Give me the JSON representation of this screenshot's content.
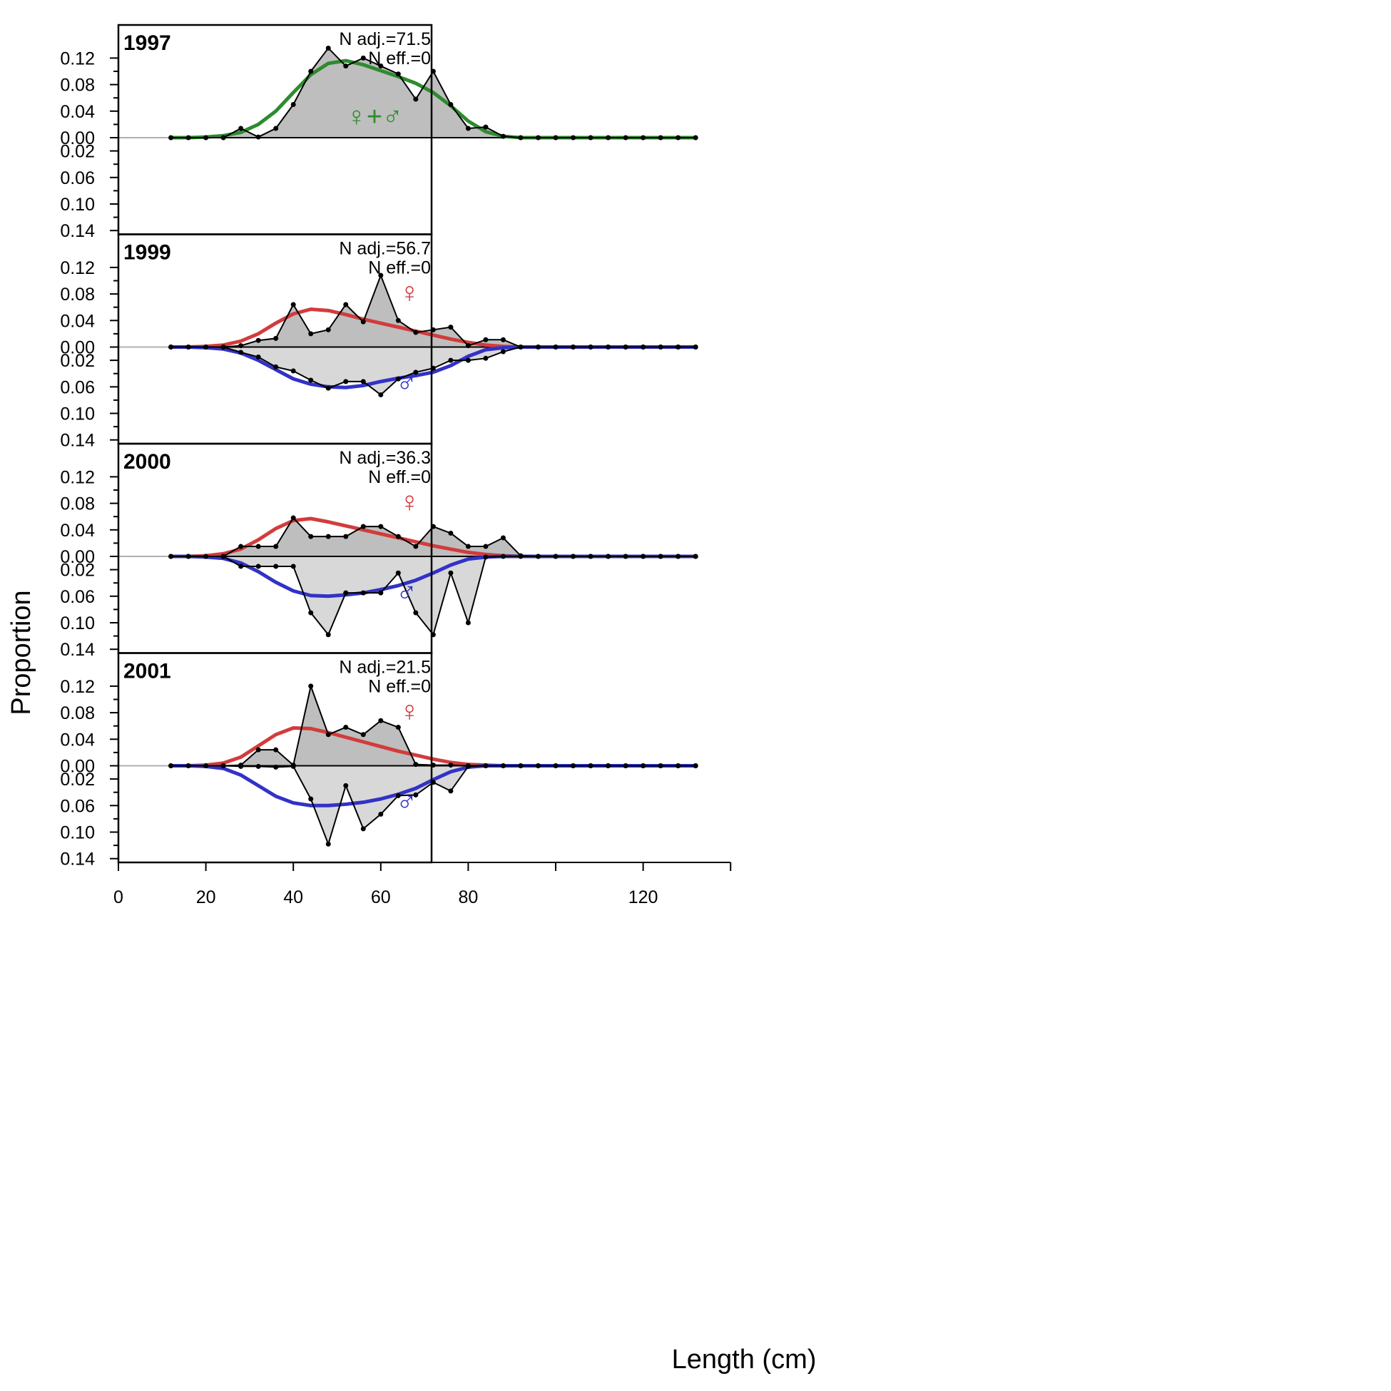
{
  "chart_data": {
    "type": "area",
    "xlabel": "Length (cm)",
    "ylabel": "Proportion",
    "xlim": [
      0,
      140
    ],
    "ylim": [
      -0.14,
      0.14
    ],
    "x_ticks": [
      0,
      20,
      40,
      60,
      80,
      120
    ],
    "y_ticks_top": [
      "0.12",
      "0.08",
      "0.04",
      "0.00"
    ],
    "y_ticks_bottom": [
      "0.02",
      "0.06",
      "0.10",
      "0.14"
    ],
    "bins": [
      12,
      16,
      20,
      24,
      28,
      32,
      36,
      40,
      44,
      48,
      52,
      56,
      60,
      64,
      68,
      72,
      76,
      80,
      84,
      88,
      92,
      96,
      100,
      104,
      108,
      112,
      116,
      120,
      124,
      128,
      132
    ],
    "colors": {
      "combined": "#2e8b2e",
      "female": "#d23c3c",
      "male": "#3232c8",
      "obs_fill": "#bebebe",
      "obs_fill_male": "#d8d8d8",
      "zero_line": "#b0b0b0"
    },
    "symbols": {
      "combined": "♀+♂",
      "female": "♀",
      "male": "♂"
    },
    "panels": [
      {
        "year": "1997",
        "n_adj": "N adj.=71.5",
        "n_eff": "N eff.=0",
        "sex": "combined",
        "observed": [
          0,
          0,
          0,
          0,
          0.014,
          0.001,
          0.014,
          0.05,
          0.1,
          0.135,
          0.108,
          0.12,
          0.108,
          0.096,
          0.058,
          0.1,
          0.05,
          0.014,
          0.016,
          0.002,
          0,
          0,
          0,
          0,
          0,
          0,
          0,
          0,
          0,
          0,
          0
        ],
        "expected": [
          0,
          0,
          0.001,
          0.003,
          0.008,
          0.02,
          0.04,
          0.068,
          0.095,
          0.112,
          0.116,
          0.11,
          0.101,
          0.092,
          0.082,
          0.068,
          0.048,
          0.025,
          0.009,
          0.002,
          0,
          0,
          0,
          0,
          0,
          0,
          0,
          0,
          0,
          0,
          0
        ]
      },
      {
        "year": "1999",
        "n_adj": "N adj.=56.7",
        "n_eff": "N eff.=0",
        "sex": "split",
        "female_observed": [
          0,
          0,
          0,
          0,
          0.002,
          0.01,
          0.013,
          0.064,
          0.02,
          0.026,
          0.064,
          0.038,
          0.108,
          0.04,
          0.022,
          0.026,
          0.03,
          0.002,
          0.011,
          0.011,
          0,
          0,
          0,
          0,
          0,
          0,
          0,
          0,
          0,
          0,
          0
        ],
        "female_expected": [
          0,
          0,
          0.001,
          0.003,
          0.009,
          0.02,
          0.036,
          0.05,
          0.057,
          0.055,
          0.049,
          0.042,
          0.036,
          0.03,
          0.024,
          0.018,
          0.012,
          0.007,
          0.003,
          0.001,
          0,
          0,
          0,
          0,
          0,
          0,
          0,
          0,
          0,
          0,
          0
        ],
        "male_observed": [
          0,
          0,
          0,
          0,
          0.008,
          0.015,
          0.03,
          0.036,
          0.05,
          0.062,
          0.052,
          0.052,
          0.072,
          0.048,
          0.038,
          0.032,
          0.02,
          0.02,
          0.017,
          0.007,
          0,
          0,
          0,
          0,
          0,
          0,
          0,
          0,
          0,
          0,
          0
        ],
        "male_expected": [
          0,
          0,
          0.001,
          0.003,
          0.009,
          0.02,
          0.034,
          0.048,
          0.056,
          0.06,
          0.061,
          0.058,
          0.052,
          0.047,
          0.043,
          0.038,
          0.028,
          0.014,
          0.004,
          0.001,
          0,
          0,
          0,
          0,
          0,
          0,
          0,
          0,
          0,
          0,
          0
        ]
      },
      {
        "year": "2000",
        "n_adj": "N adj.=36.3",
        "n_eff": "N eff.=0",
        "sex": "split",
        "female_observed": [
          0,
          0,
          0,
          0,
          0.015,
          0.015,
          0.015,
          0.058,
          0.03,
          0.03,
          0.03,
          0.045,
          0.045,
          0.03,
          0.015,
          0.045,
          0.035,
          0.015,
          0.015,
          0.028,
          0.001,
          0,
          0,
          0,
          0,
          0,
          0,
          0,
          0,
          0,
          0
        ],
        "female_expected": [
          0,
          0,
          0.001,
          0.004,
          0.011,
          0.025,
          0.042,
          0.054,
          0.057,
          0.052,
          0.046,
          0.04,
          0.034,
          0.028,
          0.022,
          0.016,
          0.011,
          0.006,
          0.003,
          0.001,
          0,
          0,
          0,
          0,
          0,
          0,
          0,
          0,
          0,
          0,
          0
        ],
        "male_observed": [
          0,
          0,
          0,
          0,
          0.015,
          0.015,
          0.015,
          0.015,
          0.085,
          0.118,
          0.055,
          0.055,
          0.055,
          0.025,
          0.085,
          0.118,
          0.025,
          0.1,
          0.001,
          0,
          0,
          0,
          0,
          0,
          0,
          0,
          0,
          0,
          0,
          0,
          0
        ],
        "male_expected": [
          0,
          0,
          0.001,
          0.003,
          0.01,
          0.023,
          0.039,
          0.052,
          0.059,
          0.06,
          0.058,
          0.055,
          0.05,
          0.044,
          0.036,
          0.025,
          0.013,
          0.004,
          0.001,
          0,
          0,
          0,
          0,
          0,
          0,
          0,
          0,
          0,
          0,
          0,
          0
        ]
      },
      {
        "year": "2001",
        "n_adj": "N adj.=21.5",
        "n_eff": "N eff.=0",
        "sex": "split",
        "female_observed": [
          0,
          0,
          0,
          0,
          0.001,
          0.024,
          0.024,
          0.001,
          0.12,
          0.047,
          0.058,
          0.047,
          0.068,
          0.058,
          0.002,
          0.001,
          0.001,
          0,
          0,
          0,
          0,
          0,
          0,
          0,
          0,
          0,
          0,
          0,
          0,
          0,
          0
        ],
        "female_expected": [
          0,
          0,
          0.001,
          0.004,
          0.013,
          0.03,
          0.047,
          0.057,
          0.056,
          0.05,
          0.043,
          0.036,
          0.029,
          0.022,
          0.016,
          0.01,
          0.005,
          0.002,
          0.001,
          0,
          0,
          0,
          0,
          0,
          0,
          0,
          0,
          0,
          0,
          0,
          0
        ],
        "male_observed": [
          0,
          0,
          0,
          0,
          0.001,
          0.001,
          0.002,
          0.001,
          0.05,
          0.118,
          0.03,
          0.095,
          0.073,
          0.045,
          0.044,
          0.025,
          0.038,
          0.001,
          0,
          0,
          0,
          0,
          0,
          0,
          0,
          0,
          0,
          0,
          0,
          0,
          0
        ],
        "male_expected": [
          0,
          0,
          0.001,
          0.004,
          0.014,
          0.03,
          0.046,
          0.056,
          0.06,
          0.06,
          0.058,
          0.055,
          0.05,
          0.043,
          0.034,
          0.021,
          0.009,
          0.002,
          0,
          0,
          0,
          0,
          0,
          0,
          0,
          0,
          0,
          0,
          0,
          0,
          0
        ]
      }
    ]
  }
}
